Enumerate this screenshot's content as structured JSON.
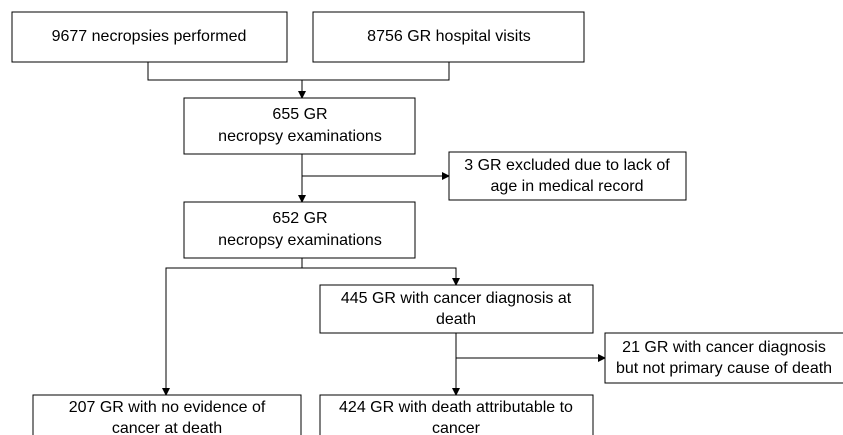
{
  "nodes": [
    {
      "lines": [
        "9677 necropsies performed"
      ]
    },
    {
      "lines": [
        "8756 GR hospital visits"
      ]
    },
    {
      "lines": [
        "655 GR",
        "necropsy examinations"
      ]
    },
    {
      "lines": [
        "3 GR excluded due to lack of",
        "age in medical record"
      ]
    },
    {
      "lines": [
        "652 GR",
        "necropsy examinations"
      ]
    },
    {
      "lines": [
        "445 GR with cancer diagnosis at",
        "death"
      ]
    },
    {
      "lines": [
        "21 GR with cancer diagnosis",
        "but not primary cause of death"
      ]
    },
    {
      "lines": [
        "207 GR with no evidence of",
        "cancer at death"
      ]
    },
    {
      "lines": [
        "424 GR with death attributable to",
        "cancer"
      ]
    }
  ]
}
